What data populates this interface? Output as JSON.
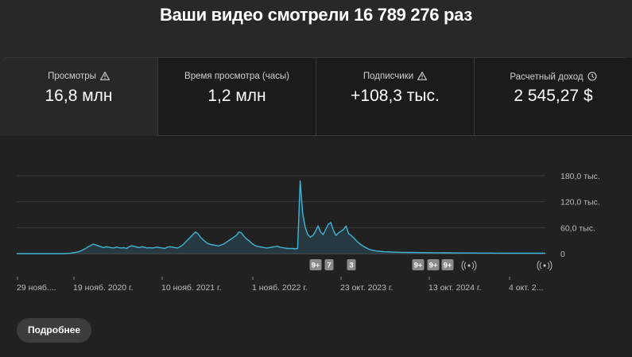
{
  "headline": "Ваши видео смотрели 16 789 276 раз",
  "tabs": [
    {
      "label": "Просмотры",
      "value": "16,8 млн",
      "icon": "warning-icon",
      "active": true
    },
    {
      "label": "Время просмотра (часы)",
      "value": "1,2 млн",
      "icon": "",
      "active": false
    },
    {
      "label": "Подписчики",
      "value": "+108,3 тыс.",
      "icon": "warning-icon",
      "active": false
    },
    {
      "label": "Расчетный доход",
      "value": "2 545,27 $",
      "icon": "clock-icon",
      "active": false
    }
  ],
  "colors": {
    "line": "#41b4d6",
    "fill": "#2b4a55",
    "badge": "#8a8a8a",
    "grid": "#3a3a3a"
  },
  "chart_data": {
    "type": "area",
    "ylim": [
      0,
      180000
    ],
    "y_tick_labels": [
      "180,0 тыс.",
      "120,0 тыс.",
      "60,0 тыс.",
      "0"
    ],
    "x_tick_labels": [
      "29 нояб....",
      "19 нояб. 2020 г.",
      "10 нояб. 2021 г.",
      "1 нояб. 2022 г.",
      "23 окт. 2023 г.",
      "13 окт. 2024 г.",
      "4 окт. 2..."
    ],
    "series": [
      {
        "values": [
          0,
          0,
          0,
          0,
          0,
          0,
          0,
          0,
          0,
          0,
          0,
          0,
          0,
          0,
          0,
          0,
          0,
          0,
          0,
          0,
          500,
          1000,
          2000,
          3000,
          4000,
          6000,
          9000,
          12000,
          16000,
          19000,
          22000,
          20000,
          18000,
          16000,
          14000,
          16000,
          15000,
          14000,
          13000,
          15000,
          14000,
          13000,
          14000,
          12000,
          16000,
          18000,
          17000,
          15000,
          14000,
          16000,
          15000,
          13000,
          14000,
          13000,
          14000,
          15000,
          14000,
          13000,
          12000,
          15000,
          16000,
          15000,
          14000,
          13000,
          16000,
          20000,
          26000,
          32000,
          38000,
          44000,
          50000,
          46000,
          38000,
          32000,
          27000,
          23000,
          21000,
          20000,
          19000,
          18000,
          20000,
          22000,
          26000,
          30000,
          34000,
          38000,
          42000,
          50000,
          48000,
          40000,
          34000,
          30000,
          24000,
          20000,
          17000,
          16000,
          15000,
          14000,
          13000,
          14000,
          15000,
          16000,
          17000,
          15000,
          14000,
          13000,
          12000,
          12000,
          12000,
          11000,
          12000,
          168000,
          92000,
          60000,
          44000,
          38000,
          42000,
          52000,
          64000,
          50000,
          44000,
          56000,
          68000,
          72000,
          54000,
          42000,
          48000,
          52000,
          56000,
          64000,
          46000,
          42000,
          36000,
          30000,
          24000,
          20000,
          16000,
          13000,
          10000,
          8000,
          7000,
          6000,
          5500,
          5000,
          4500,
          4300,
          4000,
          3700,
          3500,
          3300,
          3100,
          3000,
          2900,
          2800,
          2700,
          2700,
          2600,
          2500,
          2400,
          2400,
          2300,
          2200,
          2200,
          2100,
          2100,
          2000,
          2000,
          1900,
          1900,
          1800,
          1800,
          1700,
          1700,
          1600,
          1600,
          1500,
          1500,
          1500,
          1400,
          1400,
          1400,
          1300,
          1300,
          1300,
          1200,
          1200,
          1200,
          1100,
          1100,
          1100,
          1000,
          1000,
          1000,
          1000,
          1000,
          1000,
          1000,
          1000,
          1000,
          1000,
          1000,
          1000,
          1000,
          1000,
          1000,
          1000,
          1000,
          1000
        ]
      }
    ],
    "annotations": [
      "9+",
      "7",
      "3",
      "9+",
      "9+",
      "9+"
    ]
  },
  "more_button": "Подробнее"
}
